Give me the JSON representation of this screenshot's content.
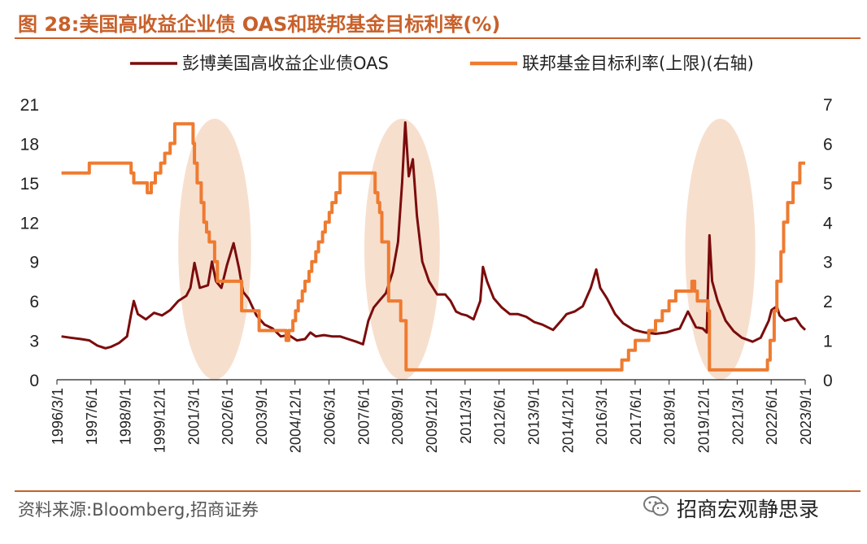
{
  "header": {
    "title": "图 28:美国高收益企业债 OAS和联邦基金目标利率(%)"
  },
  "footer": {
    "source": "资料来源:Bloomberg,招商证券",
    "brand": "招商宏观静思录"
  },
  "icons": {
    "brand_logo": "wechat-icon"
  },
  "colors": {
    "oas": "#7b0c0c",
    "ffr": "#ee7b30",
    "highlight": "#f6d9c6",
    "title": "#c8602a"
  },
  "chart_data": {
    "type": "line",
    "title": "",
    "legend": [
      "彭博美国高收益企业债OAS",
      "联邦基金目标利率(上限)(右轴)"
    ],
    "legend_position": "top",
    "y_left": {
      "range": [
        0,
        21
      ],
      "ticks": [
        "0",
        "3",
        "6",
        "9",
        "12",
        "15",
        "18",
        "21"
      ]
    },
    "y_right": {
      "range": [
        0,
        7
      ],
      "ticks": [
        "0",
        "1",
        "2",
        "3",
        "4",
        "5",
        "6",
        "7"
      ]
    },
    "x_range": [
      1996.0,
      2023.75
    ],
    "x_tick_labels": [
      "1996/3/1",
      "1997/6/1",
      "1998/9/1",
      "1999/12/1",
      "2001/3/1",
      "2002/6/1",
      "2003/9/1",
      "2004/12/1",
      "2006/3/1",
      "2007/6/1",
      "2008/9/1",
      "2009/12/1",
      "2011/3/1",
      "2012/6/1",
      "2013/9/1",
      "2014/12/1",
      "2016/3/1",
      "2017/6/1",
      "2018/9/1",
      "2019/12/1",
      "2021/3/1",
      "2022/6/1",
      "2023/9/1"
    ],
    "highlight_periods": [
      [
        2000.5,
        2003.2
      ],
      [
        2007.4,
        2010.2
      ],
      [
        2019.3,
        2021.9
      ]
    ],
    "series": [
      {
        "name": "彭博美国高收益企业债OAS",
        "axis": "left",
        "x": [
          1996.17,
          1996.5,
          1996.9,
          1997.2,
          1997.5,
          1997.8,
          1998.0,
          1998.3,
          1998.6,
          1998.75,
          1998.85,
          1999.0,
          1999.3,
          1999.6,
          1999.9,
          2000.2,
          2000.5,
          2000.8,
          2000.95,
          2001.1,
          2001.3,
          2001.6,
          2001.75,
          2001.9,
          2002.1,
          2002.3,
          2002.55,
          2002.75,
          2002.9,
          2003.1,
          2003.4,
          2003.7,
          2004.0,
          2004.3,
          2004.6,
          2004.9,
          2005.2,
          2005.4,
          2005.6,
          2005.9,
          2006.2,
          2006.5,
          2006.8,
          2007.1,
          2007.35,
          2007.55,
          2007.75,
          2007.95,
          2008.2,
          2008.45,
          2008.65,
          2008.8,
          2008.92,
          2009.05,
          2009.2,
          2009.35,
          2009.55,
          2009.8,
          2010.1,
          2010.4,
          2010.6,
          2010.8,
          2011.0,
          2011.2,
          2011.45,
          2011.7,
          2011.8,
          2011.95,
          2012.2,
          2012.5,
          2012.8,
          2013.1,
          2013.4,
          2013.7,
          2014.0,
          2014.4,
          2014.7,
          2014.9,
          2015.2,
          2015.5,
          2015.8,
          2016.0,
          2016.15,
          2016.4,
          2016.7,
          2017.0,
          2017.4,
          2017.8,
          2018.2,
          2018.6,
          2018.9,
          2019.1,
          2019.4,
          2019.7,
          2019.95,
          2020.1,
          2020.2,
          2020.3,
          2020.5,
          2020.8,
          2021.1,
          2021.4,
          2021.8,
          2022.1,
          2022.4,
          2022.5,
          2022.7,
          2022.8,
          2023.0,
          2023.2,
          2023.4,
          2023.6,
          2023.75
        ],
        "values": [
          3.3,
          3.2,
          3.1,
          3.0,
          2.6,
          2.4,
          2.5,
          2.8,
          3.3,
          5.0,
          6.0,
          5.0,
          4.6,
          5.1,
          4.9,
          5.3,
          6.0,
          6.4,
          7.0,
          8.9,
          7.0,
          7.2,
          9.0,
          7.5,
          7.0,
          8.7,
          10.4,
          8.5,
          6.7,
          6.2,
          4.9,
          4.2,
          3.9,
          3.3,
          3.4,
          3.0,
          3.1,
          3.6,
          3.3,
          3.4,
          3.3,
          3.3,
          3.1,
          2.9,
          2.7,
          4.5,
          5.5,
          6.0,
          6.6,
          8.2,
          10.5,
          15.0,
          19.6,
          15.5,
          16.8,
          12.5,
          9.0,
          7.5,
          6.5,
          6.5,
          6.0,
          5.2,
          5.0,
          4.9,
          4.6,
          6.0,
          8.6,
          7.5,
          6.2,
          5.5,
          5.0,
          5.0,
          4.8,
          4.4,
          4.2,
          3.8,
          4.5,
          5.0,
          5.2,
          5.6,
          7.0,
          8.4,
          7.0,
          6.2,
          5.0,
          4.3,
          3.8,
          3.6,
          3.5,
          3.6,
          3.8,
          3.9,
          5.2,
          4.0,
          3.9,
          3.6,
          11.0,
          7.5,
          6.0,
          4.5,
          3.7,
          3.2,
          2.9,
          3.2,
          4.5,
          5.3,
          5.6,
          4.9,
          4.5,
          4.6,
          4.7,
          4.1,
          3.8
        ]
      },
      {
        "name": "联邦基金目标利率(上限)(右轴)",
        "axis": "right",
        "x": [
          1996.17,
          1997.2,
          1998.6,
          1998.75,
          1998.85,
          1999.35,
          1999.5,
          1999.65,
          1999.85,
          2000.0,
          2000.2,
          2000.37,
          2000.95,
          2001.05,
          2001.1,
          2001.2,
          2001.35,
          2001.45,
          2001.55,
          2001.65,
          2001.85,
          2001.95,
          2002.85,
          2003.5,
          2004.5,
          2004.6,
          2004.75,
          2004.85,
          2004.95,
          2005.1,
          2005.2,
          2005.35,
          2005.45,
          2005.6,
          2005.7,
          2005.85,
          2005.95,
          2006.1,
          2006.2,
          2006.35,
          2006.5,
          2007.7,
          2007.8,
          2007.9,
          2007.97,
          2008.05,
          2008.3,
          2008.75,
          2008.95,
          2015.95,
          2016.95,
          2017.2,
          2017.45,
          2017.95,
          2018.2,
          2018.45,
          2018.7,
          2018.95,
          2019.55,
          2019.65,
          2019.75,
          2020.15,
          2020.2,
          2022.2,
          2022.35,
          2022.45,
          2022.6,
          2022.7,
          2022.85,
          2022.95,
          2023.1,
          2023.3,
          2023.55
        ],
        "values": [
          5.25,
          5.5,
          5.5,
          5.25,
          5.0,
          4.75,
          5.0,
          5.25,
          5.5,
          5.75,
          6.0,
          6.5,
          6.5,
          6.0,
          5.5,
          5.0,
          4.5,
          4.0,
          3.75,
          3.5,
          3.0,
          2.5,
          1.75,
          1.25,
          1.0,
          1.25,
          1.5,
          1.75,
          2.0,
          2.25,
          2.5,
          2.75,
          3.0,
          3.25,
          3.5,
          3.75,
          4.0,
          4.25,
          4.5,
          4.75,
          5.25,
          5.25,
          4.75,
          4.5,
          4.25,
          3.5,
          2.0,
          1.5,
          0.25,
          0.25,
          0.5,
          0.75,
          1.0,
          1.25,
          1.5,
          1.75,
          2.0,
          2.25,
          2.5,
          2.25,
          2.0,
          1.75,
          0.25,
          0.25,
          0.5,
          1.0,
          1.75,
          2.5,
          3.25,
          4.0,
          4.5,
          5.0,
          5.5
        ]
      }
    ]
  }
}
